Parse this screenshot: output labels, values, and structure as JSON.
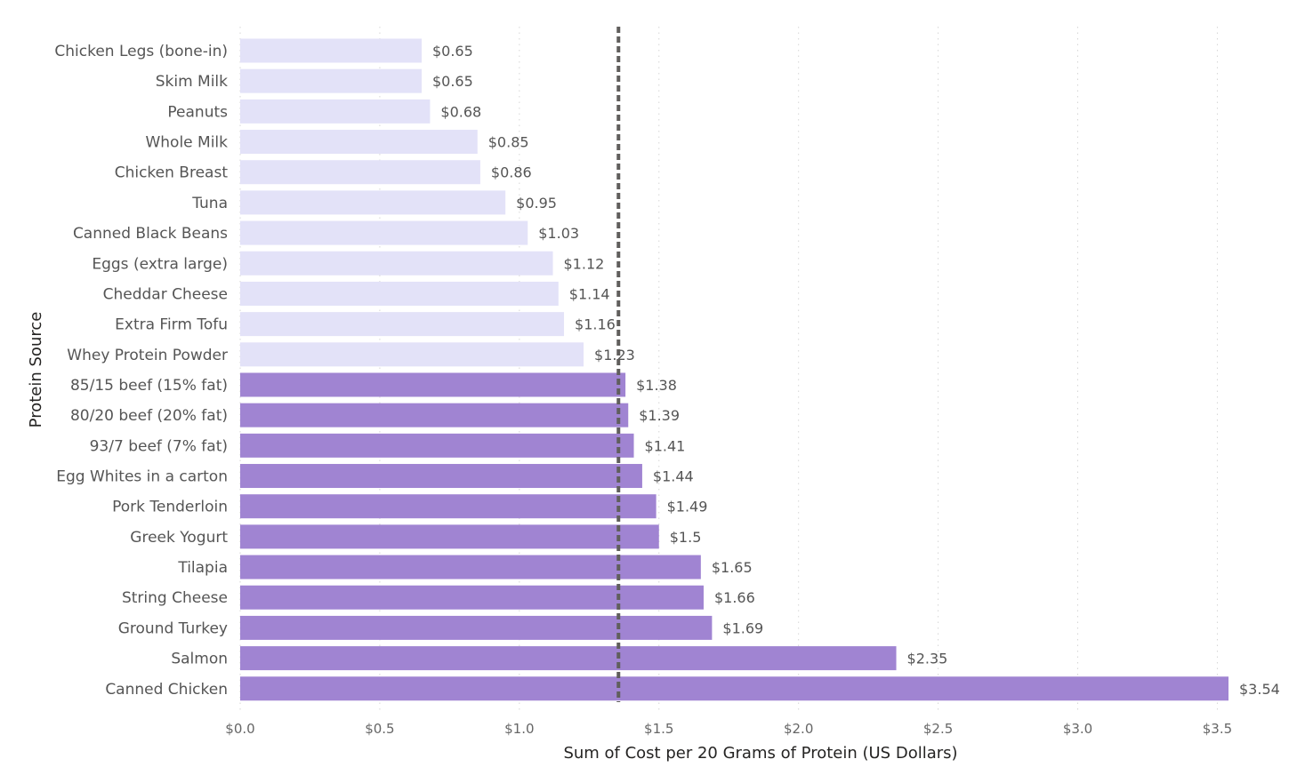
{
  "chart_data": {
    "type": "bar",
    "orientation": "horizontal",
    "xlabel": "Sum of Cost per 20 Grams of Protein (US Dollars)",
    "ylabel": "Protein Source",
    "xlim": [
      0,
      3.6
    ],
    "xticks": [
      0,
      0.5,
      1.0,
      1.5,
      2.0,
      2.5,
      3.0,
      3.5
    ],
    "xtick_labels": [
      "$0.0",
      "$0.5",
      "$1.0",
      "$1.5",
      "$2.0",
      "$2.5",
      "$3.0",
      "$3.5"
    ],
    "grid": "vertical-dotted",
    "reference_line": {
      "value": 1.355,
      "style": "dashed"
    },
    "colors": {
      "below_reference": "#E3E2F8",
      "above_reference": "#A084D2",
      "reference_line": "#605E5C"
    },
    "categories": [
      "Chicken Legs (bone-in)",
      "Skim Milk",
      "Peanuts",
      "Whole Milk",
      "Chicken Breast",
      "Tuna",
      "Canned Black Beans",
      "Eggs (extra large)",
      "Cheddar Cheese",
      "Extra Firm Tofu",
      "Whey Protein Powder",
      "85/15 beef (15% fat)",
      "80/20 beef (20% fat)",
      "93/7 beef (7% fat)",
      "Egg Whites in a carton",
      "Pork Tenderloin",
      "Greek Yogurt",
      "Tilapia",
      "String Cheese",
      "Ground Turkey",
      "Salmon",
      "Canned Chicken"
    ],
    "values": [
      0.65,
      0.65,
      0.68,
      0.85,
      0.86,
      0.95,
      1.03,
      1.12,
      1.14,
      1.16,
      1.23,
      1.38,
      1.39,
      1.41,
      1.44,
      1.49,
      1.5,
      1.65,
      1.66,
      1.69,
      2.35,
      3.54
    ],
    "data_labels": [
      "$0.65",
      "$0.65",
      "$0.68",
      "$0.85",
      "$0.86",
      "$0.95",
      "$1.03",
      "$1.12",
      "$1.14",
      "$1.16",
      "$1.23",
      "$1.38",
      "$1.39",
      "$1.41",
      "$1.44",
      "$1.49",
      "$1.5",
      "$1.65",
      "$1.66",
      "$1.69",
      "$2.35",
      "$3.54"
    ]
  }
}
